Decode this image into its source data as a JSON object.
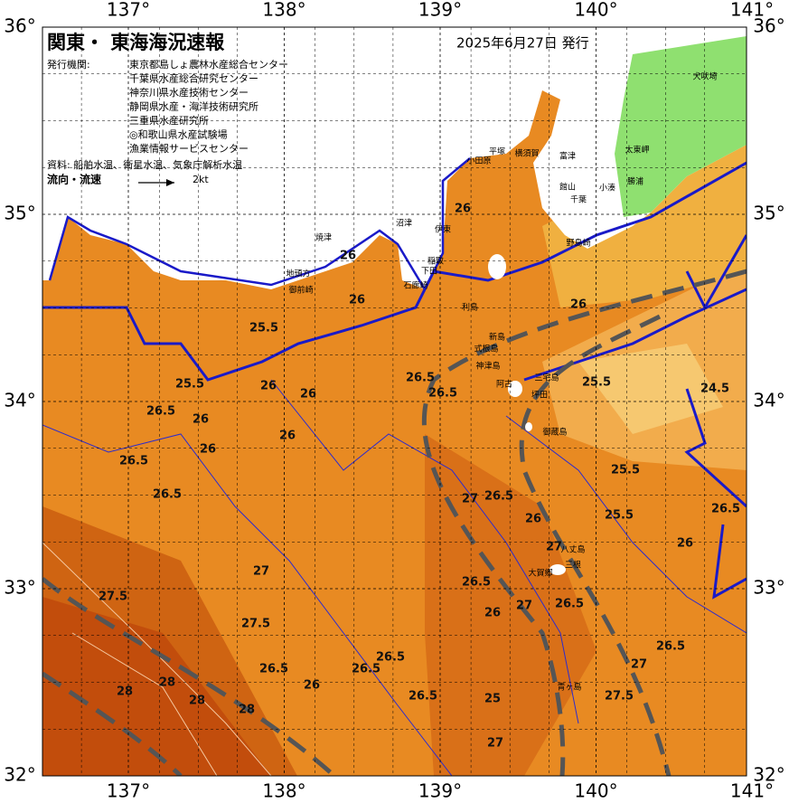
{
  "map": {
    "title": "関東・ 東海海況速報",
    "date": "2025年6月27日 発行",
    "agencies_label": "発行機関:",
    "agencies": [
      "東京都島しょ農林水産総合センター",
      "千葉県水産総合研究センター",
      "神奈川県水産技術センター",
      "静岡県水産・海洋技術研究所",
      "三重県水産研究所",
      "◎和歌山県水産試験場",
      "漁業情報サービスセンター"
    ],
    "source": "資料: 船舶水温、衛星水温、気象庁解析水温",
    "flow_label": "流向・流速",
    "flow_scale": "2kt",
    "lon_ticks": [
      {
        "value": 137,
        "label": "137°"
      },
      {
        "value": 138,
        "label": "138°"
      },
      {
        "value": 139,
        "label": "139°"
      },
      {
        "value": 140,
        "label": "140°"
      },
      {
        "value": 141,
        "label": "141°"
      }
    ],
    "lat_ticks": [
      {
        "value": 36,
        "label": "36°"
      },
      {
        "value": 35,
        "label": "35°"
      },
      {
        "value": 34,
        "label": "34°"
      },
      {
        "value": 33,
        "label": "33°"
      },
      {
        "value": 32,
        "label": "32°"
      }
    ],
    "places": [
      "小田原",
      "平塚",
      "横須賀",
      "富津",
      "千葉",
      "館山",
      "野島崎",
      "小湊",
      "勝浦",
      "太東岬",
      "犬吠埼",
      "焼津",
      "御前崎",
      "地頭方",
      "沼津",
      "伊東",
      "稲取",
      "下田",
      "石廊崎",
      "利島",
      "新島",
      "式根島",
      "神津島",
      "三宅島",
      "阿古",
      "坪田",
      "御蔵島",
      "八丈島",
      "三根",
      "大賀郷",
      "青ヶ島"
    ],
    "contour_labels": [
      25.5,
      26,
      26,
      25.5,
      26,
      26,
      26.5,
      26,
      26,
      26.5,
      26.5,
      26,
      26.5,
      26.5,
      27,
      26.5,
      26,
      27,
      27,
      26,
      26.5,
      27,
      27.5,
      28,
      28,
      28,
      28,
      27.5,
      26.5,
      26,
      26.5,
      27,
      26.5,
      27.5,
      27,
      26.5,
      25.5,
      25.5,
      24.5,
      26,
      26.5,
      25.5,
      26,
      26.5,
      25,
      26,
      26.5
    ]
  }
}
